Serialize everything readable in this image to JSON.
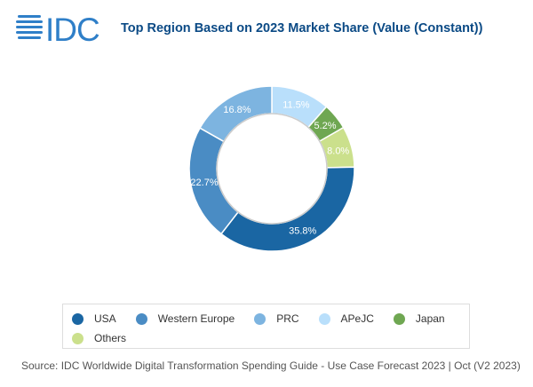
{
  "header": {
    "logo_text": "IDC",
    "title": "Top Region Based on 2023 Market Share (Value (Constant))"
  },
  "chart_data": {
    "type": "pie",
    "variant": "donut",
    "title": "Top Region Based on 2023 Market Share (Value (Constant))",
    "slices": [
      {
        "label": "APeJC",
        "value": 11.5,
        "display": "11.5%",
        "color": "#b9dffb"
      },
      {
        "label": "Japan",
        "value": 5.2,
        "display": "5.2%",
        "color": "#6fa752"
      },
      {
        "label": "Others",
        "value": 8.0,
        "display": "8.0%",
        "color": "#cbe08c"
      },
      {
        "label": "USA",
        "value": 35.8,
        "display": "35.8%",
        "color": "#1a66a3"
      },
      {
        "label": "Western Europe",
        "value": 22.7,
        "display": "22.7%",
        "color": "#4a8cc4"
      },
      {
        "label": "PRC",
        "value": 16.8,
        "display": "16.8%",
        "color": "#7db4e0"
      }
    ],
    "legend": {
      "placement": "bottom",
      "items": [
        {
          "label": "USA",
          "color": "#1a66a3"
        },
        {
          "label": "Western Europe",
          "color": "#4a8cc4"
        },
        {
          "label": "PRC",
          "color": "#7db4e0"
        },
        {
          "label": "APeJC",
          "color": "#b9dffb"
        },
        {
          "label": "Japan",
          "color": "#6fa752"
        },
        {
          "label": "Others",
          "color": "#cbe08c"
        }
      ]
    }
  },
  "footer": {
    "source": "Source: IDC Worldwide Digital Transformation Spending Guide - Use Case Forecast 2023 | Oct (V2 2023)"
  }
}
